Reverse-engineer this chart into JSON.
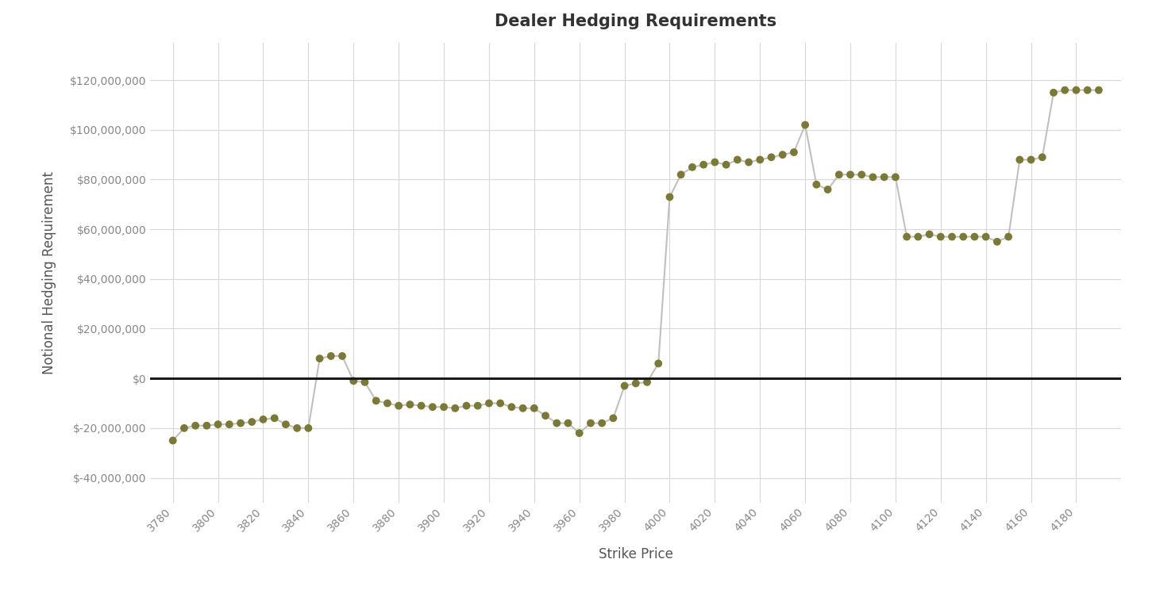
{
  "title": "Dealer Hedging Requirements",
  "xlabel": "Strike Price",
  "ylabel": "Notional Hedging Requirement",
  "background_color": "#ffffff",
  "plot_bg_color": "#ffffff",
  "grid_color": "#d8d8d8",
  "line_color": "#c0c0c0",
  "marker_color": "#7a7a35",
  "zero_line_color": "#1a1a1a",
  "ylim": [
    -50000000,
    135000000
  ],
  "xlim": [
    3770,
    4200
  ],
  "title_fontsize": 15,
  "label_fontsize": 12,
  "tick_fontsize": 10,
  "strikes": [
    3780,
    3785,
    3790,
    3795,
    3800,
    3805,
    3810,
    3815,
    3820,
    3825,
    3830,
    3835,
    3840,
    3845,
    3850,
    3855,
    3860,
    3865,
    3870,
    3875,
    3880,
    3885,
    3890,
    3895,
    3900,
    3905,
    3910,
    3915,
    3920,
    3925,
    3930,
    3935,
    3940,
    3945,
    3950,
    3955,
    3960,
    3965,
    3970,
    3975,
    3980,
    3985,
    3990,
    3995,
    4000,
    4005,
    4010,
    4015,
    4020,
    4025,
    4030,
    4035,
    4040,
    4045,
    4050,
    4055,
    4060,
    4065,
    4070,
    4075,
    4080,
    4085,
    4090,
    4095,
    4100,
    4105,
    4110,
    4115,
    4120,
    4125,
    4130,
    4135,
    4140,
    4145,
    4150,
    4155,
    4160,
    4165,
    4170,
    4175,
    4180,
    4185,
    4190
  ],
  "values": [
    -25000000,
    -20000000,
    -19000000,
    -19000000,
    -18500000,
    -18500000,
    -18000000,
    -17500000,
    -16500000,
    -16000000,
    -18500000,
    -20000000,
    -20000000,
    8000000,
    9000000,
    9000000,
    -1000000,
    -1500000,
    -9000000,
    -10000000,
    -11000000,
    -10500000,
    -11000000,
    -11500000,
    -11500000,
    -12000000,
    -11000000,
    -11000000,
    -10000000,
    -10000000,
    -11500000,
    -12000000,
    -12000000,
    -15000000,
    -18000000,
    -18000000,
    -22000000,
    -18000000,
    -18000000,
    -16000000,
    -3000000,
    -2000000,
    -1500000,
    6000000,
    73000000,
    82000000,
    85000000,
    86000000,
    87000000,
    86000000,
    88000000,
    87000000,
    88000000,
    89000000,
    90000000,
    91000000,
    102000000,
    78000000,
    76000000,
    82000000,
    82000000,
    82000000,
    81000000,
    81000000,
    81000000,
    57000000,
    57000000,
    58000000,
    57000000,
    57000000,
    57000000,
    57000000,
    57000000,
    55000000,
    57000000,
    88000000,
    88000000,
    89000000,
    115000000,
    116000000,
    116000000,
    116000000,
    116000000
  ],
  "xtick_values": [
    3780,
    3800,
    3820,
    3840,
    3860,
    3880,
    3900,
    3920,
    3940,
    3960,
    3980,
    4000,
    4020,
    4040,
    4060,
    4080,
    4100,
    4120,
    4140,
    4160,
    4180
  ],
  "ytick_values": [
    -40000000,
    -20000000,
    0,
    20000000,
    40000000,
    60000000,
    80000000,
    100000000,
    120000000
  ]
}
